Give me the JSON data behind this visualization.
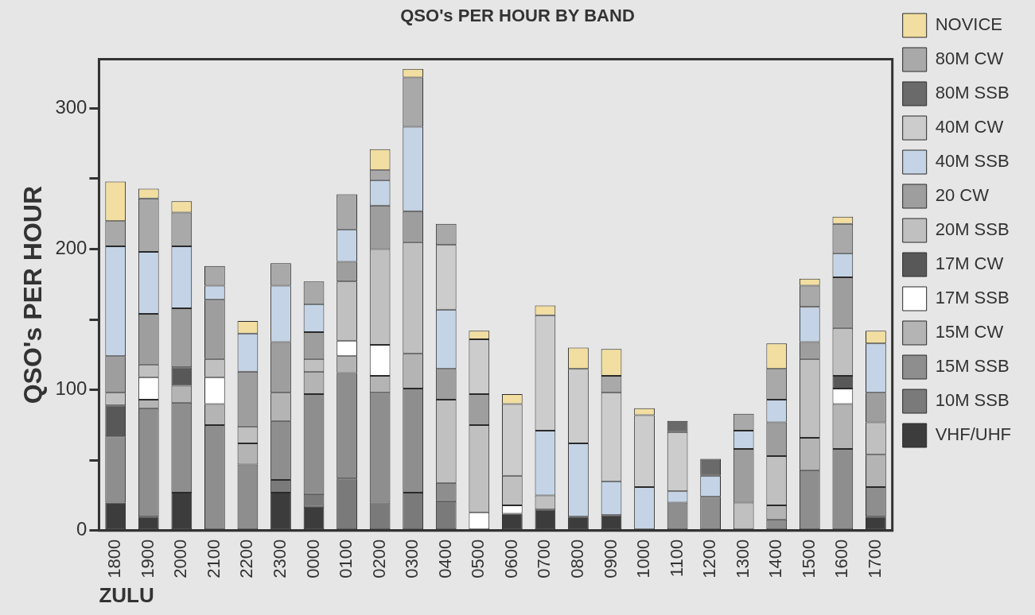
{
  "chart_data": {
    "type": "bar",
    "title": "QSO's PER HOUR BY BAND",
    "xlabel": "ZULU",
    "ylabel": "QSO's PER HOUR",
    "stacked": true,
    "legend": "right",
    "grid": false,
    "categories": [
      "1800",
      "1900",
      "2000",
      "2100",
      "2200",
      "2300",
      "0000",
      "0100",
      "0200",
      "0300",
      "0400",
      "0500",
      "0600",
      "0700",
      "0800",
      "0900",
      "1000",
      "1100",
      "1200",
      "1300",
      "1400",
      "1500",
      "1600",
      "1700"
    ],
    "ylim": [
      0,
      335
    ],
    "yticks": [
      0,
      {
        "value": 50,
        "label": null
      },
      100,
      {
        "value": 150,
        "label": null
      },
      200,
      {
        "value": 250,
        "label": null
      },
      300
    ],
    "series": [
      {
        "name": "VHF/UHF",
        "color": "#3c3c3c",
        "values": [
          20,
          10,
          27,
          0,
          0,
          27,
          17,
          0,
          0,
          0,
          0,
          0,
          12,
          15,
          10,
          11,
          0,
          0,
          0,
          0,
          0,
          0,
          0,
          10
        ]
      },
      {
        "name": "10M SSB",
        "color": "#7a7a7a",
        "values": [
          0,
          0,
          0,
          0,
          0,
          9,
          9,
          37,
          20,
          27,
          21,
          0,
          0,
          0,
          0,
          0,
          0,
          0,
          0,
          0,
          0,
          0,
          0,
          0
        ]
      },
      {
        "name": "15M SSB",
        "color": "#8e8e8e",
        "values": [
          47,
          77,
          64,
          75,
          47,
          42,
          71,
          75,
          78,
          74,
          13,
          0,
          0,
          0,
          0,
          0,
          0,
          20,
          24,
          0,
          8,
          43,
          58,
          21
        ]
      },
      {
        "name": "15M CW",
        "color": "#b4b4b4",
        "values": [
          0,
          6,
          12,
          15,
          15,
          20,
          16,
          12,
          12,
          25,
          0,
          0,
          0,
          0,
          0,
          0,
          0,
          0,
          0,
          0,
          10,
          23,
          32,
          23
        ]
      },
      {
        "name": "17M SSB",
        "color": "#ffffff",
        "values": [
          0,
          16,
          0,
          19,
          0,
          0,
          0,
          11,
          22,
          0,
          0,
          13,
          6,
          0,
          0,
          0,
          0,
          0,
          0,
          0,
          0,
          0,
          11,
          0
        ]
      },
      {
        "name": "17M CW",
        "color": "#585858",
        "values": [
          22,
          0,
          13,
          0,
          0,
          0,
          0,
          0,
          0,
          0,
          0,
          0,
          0,
          0,
          0,
          0,
          0,
          0,
          0,
          0,
          0,
          0,
          9,
          0
        ]
      },
      {
        "name": "20M SSB",
        "color": "#c0c0c0",
        "values": [
          9,
          9,
          0,
          13,
          12,
          0,
          9,
          42,
          68,
          79,
          59,
          62,
          21,
          10,
          0,
          0,
          0,
          0,
          0,
          20,
          35,
          56,
          34,
          23
        ]
      },
      {
        "name": "20 CW",
        "color": "#9e9e9e",
        "values": [
          26,
          36,
          42,
          42,
          39,
          36,
          19,
          14,
          31,
          22,
          22,
          22,
          0,
          0,
          0,
          0,
          0,
          0,
          0,
          38,
          24,
          12,
          36,
          21
        ]
      },
      {
        "name": "40M SSB",
        "color": "#c4d4e6",
        "values": [
          78,
          44,
          44,
          10,
          27,
          40,
          20,
          23,
          18,
          60,
          42,
          0,
          0,
          46,
          52,
          24,
          31,
          8,
          15,
          13,
          16,
          25,
          17,
          35
        ]
      },
      {
        "name": "40M CW",
        "color": "#cccccc",
        "values": [
          0,
          0,
          0,
          0,
          0,
          0,
          0,
          0,
          0,
          0,
          46,
          39,
          51,
          82,
          53,
          63,
          51,
          42,
          0,
          0,
          0,
          0,
          0,
          0
        ]
      },
      {
        "name": "80M SSB",
        "color": "#6a6a6a",
        "values": [
          0,
          0,
          0,
          0,
          0,
          0,
          0,
          0,
          0,
          0,
          0,
          0,
          0,
          0,
          0,
          0,
          0,
          8,
          12,
          0,
          0,
          0,
          0,
          0
        ]
      },
      {
        "name": "80M CW",
        "color": "#a9a9a9",
        "values": [
          18,
          38,
          24,
          14,
          0,
          16,
          16,
          25,
          7,
          35,
          15,
          0,
          0,
          0,
          0,
          12,
          0,
          0,
          0,
          12,
          22,
          15,
          21,
          0
        ]
      },
      {
        "name": "NOVICE",
        "color": "#f2dea0",
        "values": [
          28,
          7,
          8,
          0,
          9,
          0,
          0,
          0,
          15,
          6,
          0,
          6,
          7,
          7,
          15,
          19,
          5,
          0,
          0,
          0,
          18,
          5,
          5,
          9
        ]
      }
    ]
  }
}
